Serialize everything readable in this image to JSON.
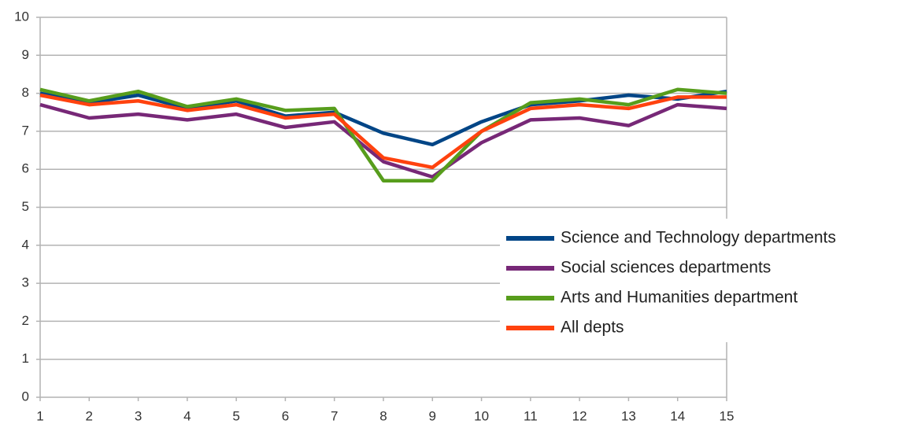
{
  "chart_data": {
    "type": "line",
    "x": [
      1,
      2,
      3,
      4,
      5,
      6,
      7,
      8,
      9,
      10,
      11,
      12,
      13,
      14,
      15
    ],
    "xlim": [
      1,
      15
    ],
    "xticks": [
      1,
      2,
      3,
      4,
      5,
      6,
      7,
      8,
      9,
      10,
      11,
      12,
      13,
      14,
      15
    ],
    "ylim": [
      0,
      10
    ],
    "yticks": [
      0,
      1,
      2,
      3,
      4,
      5,
      6,
      7,
      8,
      9,
      10
    ],
    "grid": true,
    "legend": "right",
    "series": [
      {
        "name": "Science and Technology departments",
        "color": "#004586",
        "values": [
          8.0,
          7.75,
          7.95,
          7.6,
          7.8,
          7.4,
          7.5,
          6.95,
          6.65,
          7.25,
          7.7,
          7.8,
          7.95,
          7.85,
          8.05
        ]
      },
      {
        "name": "Social sciences departments",
        "color": "#772877",
        "values": [
          7.7,
          7.35,
          7.45,
          7.3,
          7.45,
          7.1,
          7.25,
          6.2,
          5.8,
          6.7,
          7.3,
          7.35,
          7.15,
          7.7,
          7.6
        ]
      },
      {
        "name": "Arts and Humanities department",
        "color": "#579d1c",
        "values": [
          8.1,
          7.8,
          8.05,
          7.65,
          7.85,
          7.55,
          7.6,
          5.7,
          5.7,
          7.0,
          7.75,
          7.85,
          7.7,
          8.1,
          8.0
        ]
      },
      {
        "name": "All depts",
        "color": "#ff420e",
        "values": [
          7.95,
          7.7,
          7.8,
          7.55,
          7.7,
          7.35,
          7.45,
          6.3,
          6.05,
          7.0,
          7.6,
          7.7,
          7.6,
          7.9,
          7.9
        ]
      }
    ]
  }
}
